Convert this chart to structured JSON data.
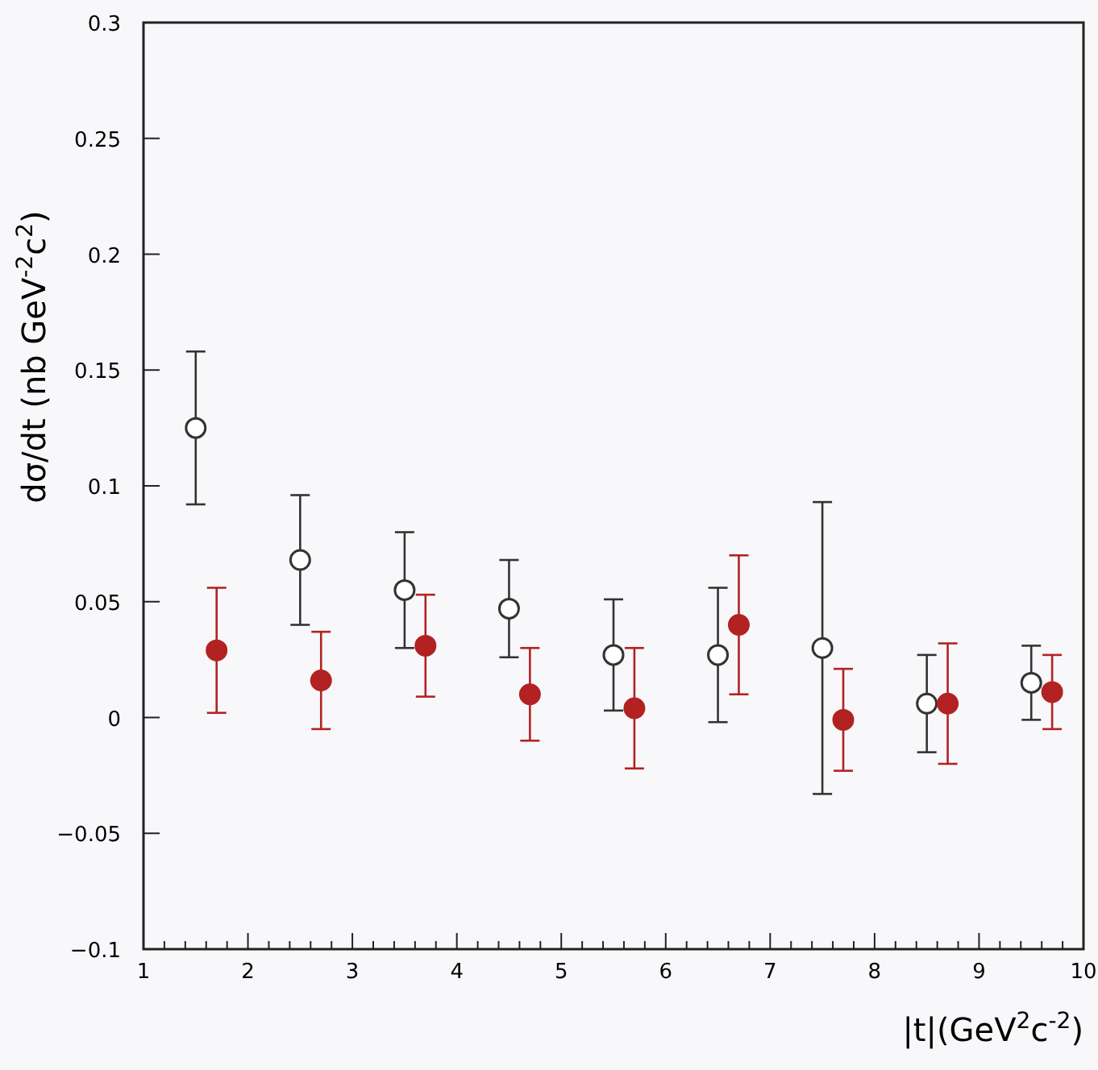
{
  "chart_data": {
    "type": "scatter",
    "xlabel": "|t|(GeV$^{2}$c$^{-2}$)",
    "ylabel": "dσ/dt (nb GeV$^{-2}$c$^{2}$)",
    "xlim": [
      1,
      10
    ],
    "ylim": [
      -0.1,
      0.3
    ],
    "xticks": [
      1,
      {
        "value": 1.2,
        "label": null
      },
      {
        "value": 1.4,
        "label": null
      },
      {
        "value": 1.6,
        "label": null
      },
      {
        "value": 1.8,
        "label": null
      },
      2,
      {
        "value": 2.2,
        "label": null
      },
      {
        "value": 2.4,
        "label": null
      },
      {
        "value": 2.6,
        "label": null
      },
      {
        "value": 2.8,
        "label": null
      },
      3,
      {
        "value": 3.2,
        "label": null
      },
      {
        "value": 3.4,
        "label": null
      },
      {
        "value": 3.6,
        "label": null
      },
      {
        "value": 3.8,
        "label": null
      },
      4,
      {
        "value": 4.2,
        "label": null
      },
      {
        "value": 4.4,
        "label": null
      },
      {
        "value": 4.6,
        "label": null
      },
      {
        "value": 4.8,
        "label": null
      },
      5,
      {
        "value": 5.2,
        "label": null
      },
      {
        "value": 5.4,
        "label": null
      },
      {
        "value": 5.6,
        "label": null
      },
      {
        "value": 5.8,
        "label": null
      },
      6,
      {
        "value": 6.2,
        "label": null
      },
      {
        "value": 6.4,
        "label": null
      },
      {
        "value": 6.6,
        "label": null
      },
      {
        "value": 6.8,
        "label": null
      },
      7,
      {
        "value": 7.2,
        "label": null
      },
      {
        "value": 7.4,
        "label": null
      },
      {
        "value": 7.6,
        "label": null
      },
      {
        "value": 7.8,
        "label": null
      },
      8,
      {
        "value": 8.2,
        "label": null
      },
      {
        "value": 8.4,
        "label": null
      },
      {
        "value": 8.6,
        "label": null
      },
      {
        "value": 8.8,
        "label": null
      },
      9,
      {
        "value": 9.2,
        "label": null
      },
      {
        "value": 9.4,
        "label": null
      },
      {
        "value": 9.6,
        "label": null
      },
      {
        "value": 9.8,
        "label": null
      },
      10
    ],
    "yticks": [
      {
        "value": -0.1,
        "label": "−0.1"
      },
      {
        "value": -0.05,
        "label": "−0.05"
      },
      0,
      0.05,
      0.1,
      0.15,
      0.2,
      0.25,
      0.3
    ],
    "series": [
      {
        "color": "#333333",
        "marker": "circle",
        "x": [
          1.5,
          2.5,
          3.5,
          4.5,
          5.5,
          6.5,
          7.5,
          8.5,
          9.5
        ],
        "values": [
          0.125,
          0.068,
          0.055,
          0.047,
          0.027,
          0.027,
          0.03,
          0.006,
          0.015
        ],
        "errors": [
          0.033,
          0.028,
          0.025,
          0.021,
          0.024,
          0.029,
          0.063,
          0.021,
          0.016
        ]
      },
      {
        "color": "#b22222",
        "marker": "circle",
        "x": [
          1.7,
          2.7,
          3.7,
          4.7,
          5.7,
          6.7,
          7.7,
          8.7,
          9.7
        ],
        "values": [
          0.029,
          0.016,
          0.031,
          0.01,
          0.004,
          0.04,
          -0.001,
          0.006,
          0.011
        ],
        "errors": [
          0.027,
          0.021,
          0.022,
          0.02,
          0.026,
          0.03,
          0.022,
          0.026,
          0.016
        ]
      }
    ]
  }
}
